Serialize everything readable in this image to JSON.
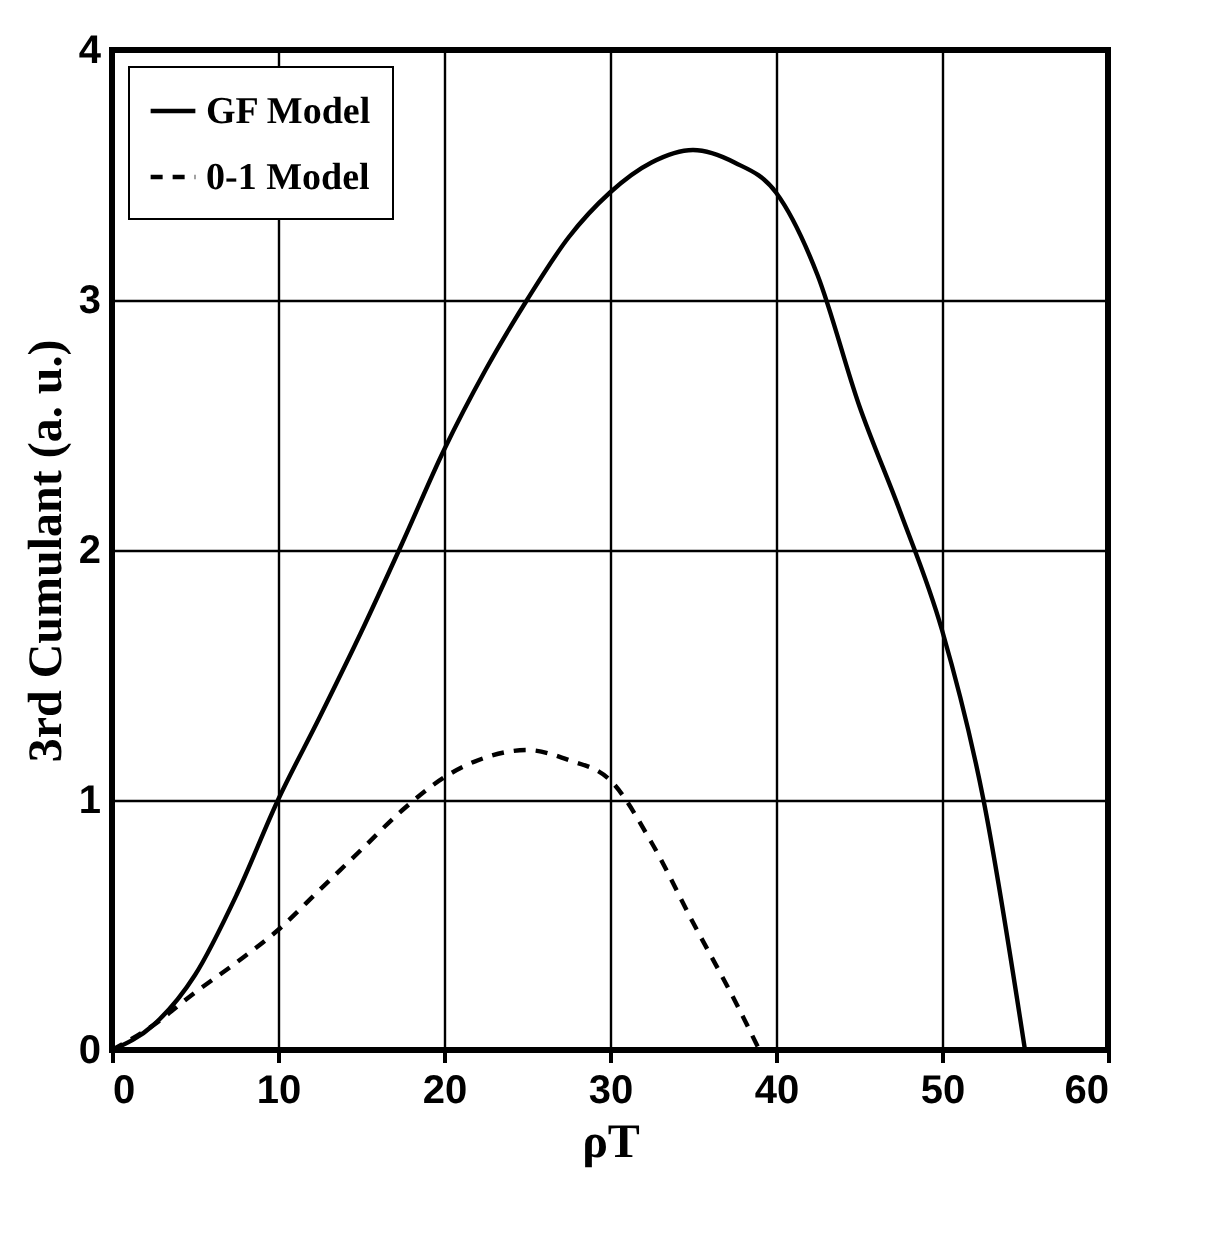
{
  "chart_data": {
    "type": "line",
    "xlabel": "ρT",
    "ylabel": "3rd Cumulant (a. u.)",
    "xlim": [
      0,
      60
    ],
    "xticks": [
      0,
      10,
      20,
      30,
      40,
      50,
      60
    ],
    "ylim": [
      0,
      4
    ],
    "yticks": [
      0,
      1,
      2,
      3,
      4
    ],
    "grid": true,
    "legend": "top left",
    "marker": "none",
    "series": [
      {
        "name": "GF Model",
        "color": "#000000",
        "line_style": "solid",
        "x": [
          0,
          2.5,
          5,
          7.5,
          10,
          12.5,
          15,
          17.5,
          20,
          22.5,
          25,
          27.5,
          30,
          32.5,
          35,
          37.5,
          40,
          42.5,
          45,
          47.5,
          50,
          52.5,
          55
        ],
        "values": [
          0,
          0.1,
          0.3,
          0.62,
          1.0,
          1.33,
          1.67,
          2.03,
          2.4,
          2.72,
          3.0,
          3.25,
          3.43,
          3.55,
          3.6,
          3.55,
          3.43,
          3.1,
          2.58,
          2.15,
          1.68,
          1.0,
          0
        ]
      },
      {
        "name": "0-1 Model",
        "color": "#000000",
        "line_style": "dashed",
        "x": [
          0,
          2.5,
          5,
          7.5,
          10,
          12.5,
          15,
          17.5,
          20,
          22.5,
          25,
          27.5,
          30,
          32.5,
          35,
          37.5,
          39
        ],
        "values": [
          0,
          0.1,
          0.23,
          0.35,
          0.48,
          0.64,
          0.8,
          0.96,
          1.09,
          1.17,
          1.2,
          1.16,
          1.08,
          0.83,
          0.51,
          0.2,
          0
        ]
      }
    ]
  }
}
